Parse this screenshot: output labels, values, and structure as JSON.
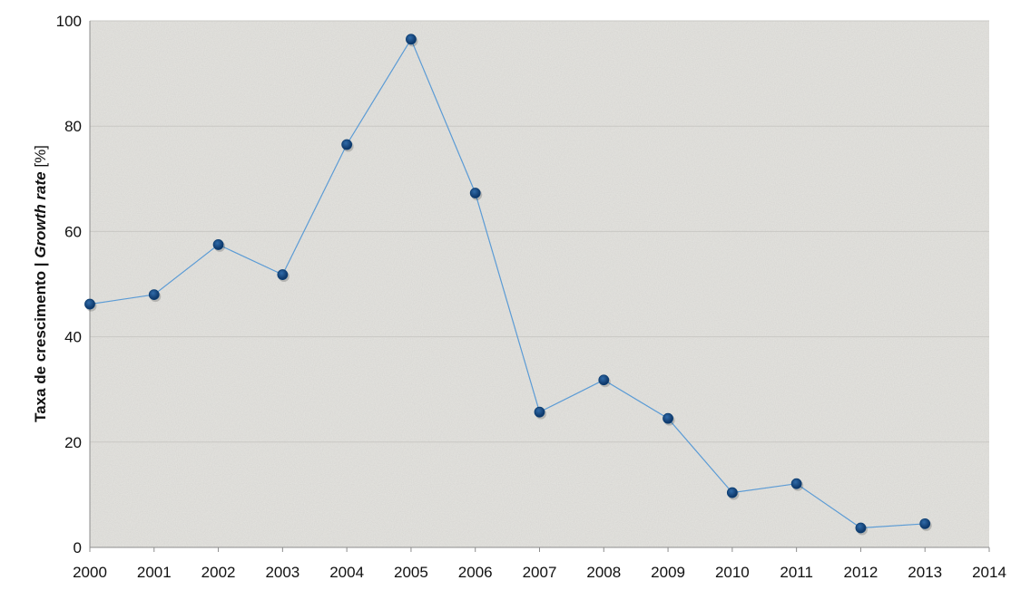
{
  "chart_data": {
    "type": "line",
    "title": "",
    "xlabel": "",
    "ylabel_parts": [
      "Taxa de crescimento | ",
      "Growth rate",
      " [%]"
    ],
    "xlim": [
      2000,
      2014
    ],
    "ylim": [
      0,
      100
    ],
    "x_ticks": [
      "2000",
      "2001",
      "2002",
      "2003",
      "2004",
      "2005",
      "2006",
      "2007",
      "2008",
      "2009",
      "2010",
      "2011",
      "2012",
      "2013",
      "2014"
    ],
    "y_ticks": [
      "0",
      "20",
      "40",
      "60",
      "80",
      "100"
    ],
    "grid": true,
    "legend": "none",
    "series": [
      {
        "color": "#0d3f73",
        "line_color": "#5b9bd5",
        "x": [
          2000,
          2001,
          2002,
          2003,
          2004,
          2005,
          2006,
          2007,
          2008,
          2009,
          2010,
          2011,
          2012,
          2013
        ],
        "values": [
          46.2,
          48.0,
          57.5,
          51.8,
          76.5,
          96.5,
          67.3,
          25.7,
          31.8,
          24.5,
          10.4,
          12.1,
          3.7,
          4.5
        ]
      }
    ]
  }
}
